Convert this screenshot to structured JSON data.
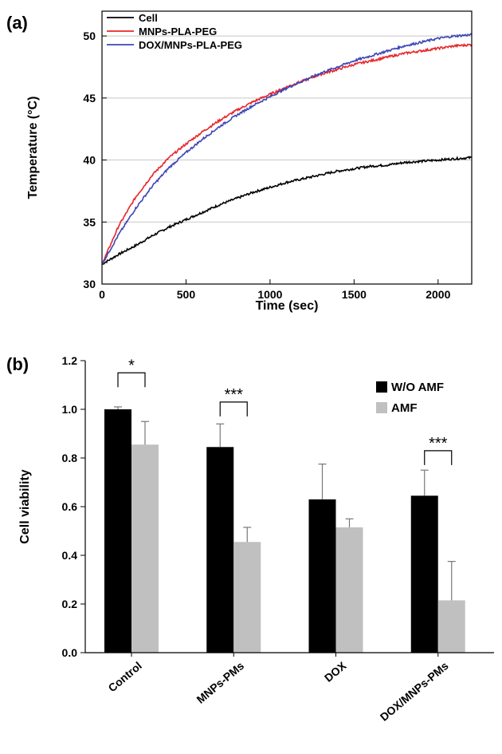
{
  "chart_data": [
    {
      "type": "line",
      "panel_label": "(a)",
      "xlabel": "Time (sec)",
      "ylabel": "Temperature (°C)",
      "xlim": [
        0,
        2200
      ],
      "ylim": [
        30,
        52
      ],
      "xticks": [
        "0",
        "500",
        "1000",
        "1500",
        "2000"
      ],
      "yticks": [
        "30",
        "35",
        "40",
        "45",
        "50"
      ],
      "grid": "horizontal",
      "legend_position": "top-left",
      "series": [
        {
          "name": "Cell",
          "color": "#000000",
          "x": [
            0,
            100,
            200,
            300,
            400,
            500,
            600,
            700,
            800,
            900,
            1000,
            1100,
            1200,
            1300,
            1400,
            1500,
            1600,
            1700,
            1800,
            1900,
            2000,
            2100,
            2200
          ],
          "y": [
            31.6,
            32.4,
            33.1,
            33.9,
            34.6,
            35.2,
            35.8,
            36.4,
            36.9,
            37.4,
            37.8,
            38.2,
            38.5,
            38.8,
            39.1,
            39.3,
            39.5,
            39.6,
            39.8,
            39.9,
            40.0,
            40.1,
            40.2
          ]
        },
        {
          "name": "MNPs-PLA-PEG",
          "color": "#e8262a",
          "x": [
            0,
            100,
            200,
            300,
            400,
            500,
            600,
            700,
            800,
            900,
            1000,
            1100,
            1200,
            1300,
            1400,
            1500,
            1600,
            1700,
            1800,
            1900,
            2000,
            2100,
            2200
          ],
          "y": [
            31.6,
            34.7,
            37.0,
            38.8,
            40.2,
            41.3,
            42.3,
            43.2,
            44.0,
            44.7,
            45.3,
            45.9,
            46.4,
            46.9,
            47.3,
            47.7,
            48.0,
            48.3,
            48.6,
            48.8,
            49.0,
            49.2,
            49.3
          ]
        },
        {
          "name": "DOX/MNPs-PLA-PEG",
          "color": "#3c46b4",
          "x": [
            0,
            100,
            200,
            300,
            400,
            500,
            600,
            700,
            800,
            900,
            1000,
            1100,
            1200,
            1300,
            1400,
            1500,
            1600,
            1700,
            1800,
            1900,
            2000,
            2100,
            2200
          ],
          "y": [
            31.6,
            34.0,
            36.1,
            37.9,
            39.4,
            40.6,
            41.7,
            42.7,
            43.6,
            44.4,
            45.1,
            45.8,
            46.4,
            47.0,
            47.5,
            48.0,
            48.4,
            48.8,
            49.2,
            49.5,
            49.8,
            50.0,
            50.1
          ]
        }
      ]
    },
    {
      "type": "bar",
      "panel_label": "(b)",
      "ylabel": "Cell viability",
      "ylim": [
        0,
        1.2
      ],
      "yticks": [
        "0.0",
        "0.2",
        "0.4",
        "0.6",
        "0.8",
        "1.0",
        "1.2"
      ],
      "categories": [
        "Control",
        "MNPs-PMs",
        "DOX",
        "DOX/MNPs-PMs"
      ],
      "legend_position": "top-right",
      "series": [
        {
          "name": "W/O AMF",
          "color": "#000000",
          "values": [
            1.0,
            0.845,
            0.63,
            0.645
          ],
          "errors": [
            0.01,
            0.095,
            0.145,
            0.105
          ]
        },
        {
          "name": "AMF",
          "color": "#c0c0c0",
          "values": [
            0.855,
            0.455,
            0.515,
            0.215
          ],
          "errors": [
            0.095,
            0.06,
            0.035,
            0.16
          ]
        }
      ],
      "significance": [
        {
          "category": "Control",
          "label": "*",
          "level": 1.15
        },
        {
          "category": "MNPs-PMs",
          "label": "***",
          "level": 1.03
        },
        {
          "category": "DOX/MNPs-PMs",
          "label": "***",
          "level": 0.83
        }
      ]
    }
  ]
}
